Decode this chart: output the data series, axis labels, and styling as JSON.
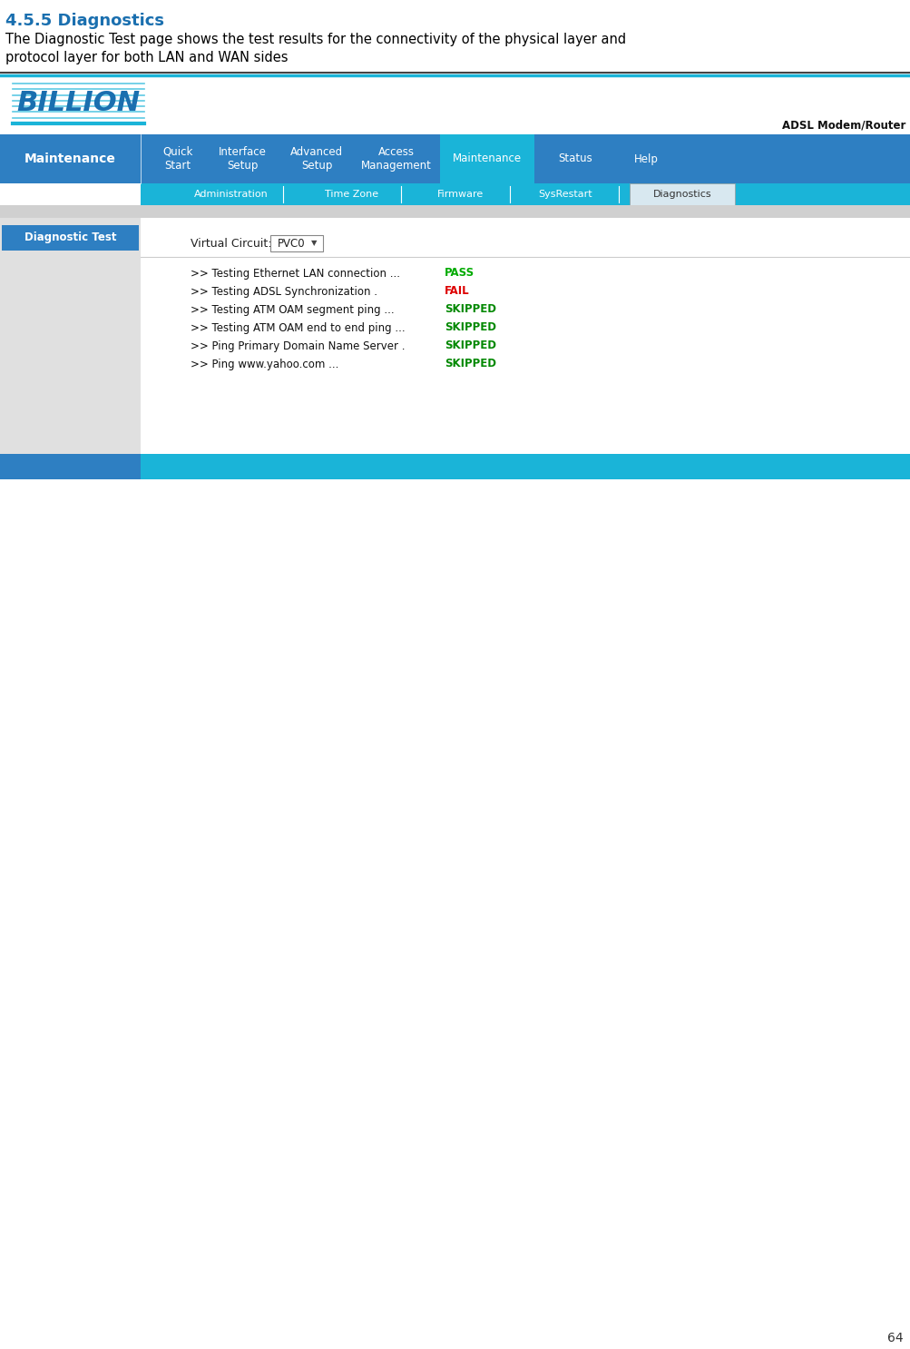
{
  "title": "4.5.5 Diagnostics",
  "title_color": "#1a6faf",
  "description_line1": "The Diagnostic Test page shows the test results for the connectivity of the physical layer and",
  "description_line2": "protocol layer for both LAN and WAN sides",
  "page_number": "64",
  "bg_color": "#ffffff",
  "nav_bg": "#2e7fc2",
  "nav_active_bg": "#1ab4d8",
  "subnav_bg": "#1ab4d8",
  "subnav_active_bg": "#d8e8f0",
  "sidebar_bg": "#e0e0e0",
  "sidebar_btn_bg": "#2e7fc2",
  "logo_blue": "#1a6faf",
  "logo_cyan": "#1ab4d8",
  "adsl_text": "ADSL Modem/Router",
  "nav_left_label": "Maintenance",
  "nav_items": [
    "Quick\nStart",
    "Interface\nSetup",
    "Advanced\nSetup",
    "Access\nManagement",
    "Maintenance",
    "Status",
    "Help"
  ],
  "nav_active_index": 4,
  "subnav_items": [
    "Administration",
    "Time Zone",
    "Firmware",
    "SysRestart",
    "Diagnostics"
  ],
  "subnav_active_index": 4,
  "content_label": "Diagnostic Test",
  "virtual_circuit_label": "Virtual Circuit:",
  "virtual_circuit_value": "PVC0",
  "test_items": [
    {
      "text": ">> Testing Ethernet LAN connection ...",
      "result": "PASS",
      "color": "#00aa00"
    },
    {
      "text": ">> Testing ADSL Synchronization .",
      "result": "FAIL",
      "color": "#dd0000"
    },
    {
      "text": ">> Testing ATM OAM segment ping ...",
      "result": "SKIPPED",
      "color": "#008800"
    },
    {
      "text": ">> Testing ATM OAM end to end ping ...",
      "result": "SKIPPED",
      "color": "#008800"
    },
    {
      "text": ">> Ping Primary Domain Name Server .",
      "result": "SKIPPED",
      "color": "#008800"
    },
    {
      "text": ">> Ping www.yahoo.com ...",
      "result": "SKIPPED",
      "color": "#008800"
    }
  ],
  "divider_line_color": "#000000",
  "divider_cyan_color": "#1ab4d8",
  "gray_band_color": "#d0d0d0",
  "bottom_left_color": "#2e7fc2",
  "bottom_right_color": "#1ab4d8",
  "white": "#ffffff",
  "light_gray_content": "#f0f0f0"
}
